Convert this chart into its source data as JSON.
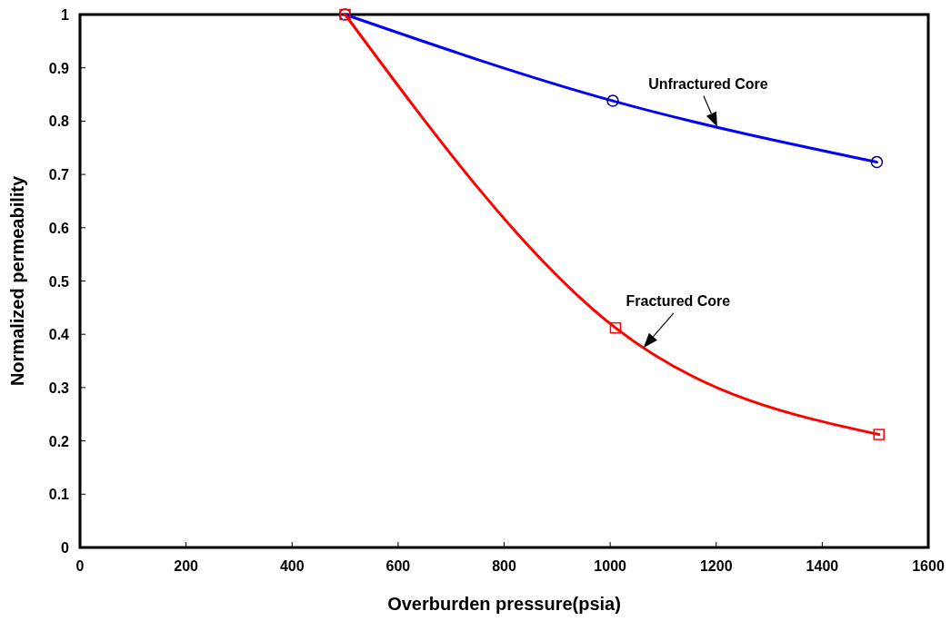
{
  "chart_data": {
    "type": "line",
    "xlabel": "Overburden pressure(psia)",
    "ylabel": "Normalized permeability",
    "xlim": [
      0,
      1600
    ],
    "xticks": [
      0,
      200,
      400,
      600,
      800,
      1000,
      1200,
      1400,
      1600
    ],
    "ylim": [
      0,
      1
    ],
    "yticks": [
      0,
      0.1,
      0.2,
      0.3,
      0.4,
      0.5,
      0.6,
      0.7,
      0.8,
      0.9,
      1
    ],
    "grid": false,
    "line_style": "solid",
    "series": [
      {
        "color": "#0000ff",
        "marker": "circle",
        "x": [
          500,
          1005,
          1503
        ],
        "values": [
          1,
          0.838,
          0.723
        ]
      },
      {
        "color": "#ff0000",
        "marker": "square",
        "x": [
          500,
          1010,
          1507
        ],
        "values": [
          1,
          0.412,
          0.212
        ]
      }
    ],
    "annotations": [
      {
        "text": "Unfractured Core",
        "x": 1202,
        "y": 0.789
      },
      {
        "text": "Fractured Core",
        "x": 1063,
        "y": 0.375
      }
    ]
  }
}
